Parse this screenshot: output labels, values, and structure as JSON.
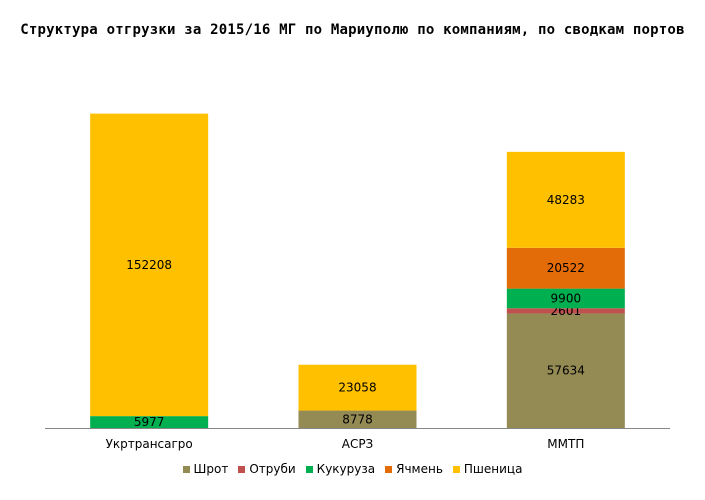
{
  "chart_data": {
    "type": "bar",
    "stacked": true,
    "title": "Структура отгрузки за 2015/16 МГ по Мариуполю по компаниям, по сводкам портов",
    "categories": [
      "Укртрансагро",
      "АСРЗ",
      "ММТП"
    ],
    "series": [
      {
        "name": "Шрот",
        "color": "#948A54",
        "values": [
          0,
          8778,
          57634
        ]
      },
      {
        "name": "Отруби",
        "color": "#C0504D",
        "values": [
          0,
          0,
          2601
        ]
      },
      {
        "name": "Кукуруза",
        "color": "#00B050",
        "values": [
          5977,
          0,
          9900
        ]
      },
      {
        "name": "Ячмень",
        "color": "#E36C09",
        "values": [
          0,
          0,
          20522
        ]
      },
      {
        "name": "Пшеница",
        "color": "#FFC000",
        "values": [
          152208,
          23058,
          48283
        ]
      }
    ],
    "ylim": [
      0,
      165000
    ],
    "legend_position": "bottom",
    "grid": false
  }
}
